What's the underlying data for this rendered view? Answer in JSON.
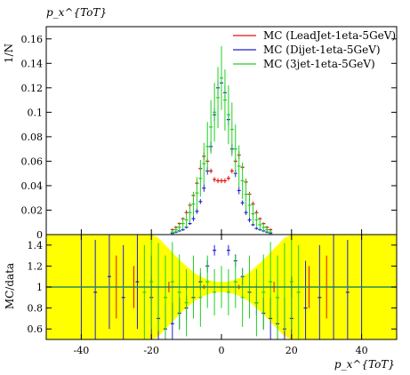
{
  "chart_data": [
    {
      "type": "scatter",
      "panel": "main",
      "title": "p_x^{ToT}",
      "xlabel": "",
      "ylabel": "1/N",
      "xlim": [
        -50,
        50
      ],
      "ylim": [
        0,
        0.17
      ],
      "xticks": [],
      "yticks": [
        0,
        0.02,
        0.04,
        0.06,
        0.08,
        0.1,
        0.12,
        0.14,
        0.16
      ],
      "ytick_labels": [
        "0",
        "0.02",
        "0.04",
        "0.06",
        "0.08",
        "0.1",
        "0.12",
        "0.14",
        "0.16"
      ],
      "legend_position": "top-right",
      "series": [
        {
          "name": "MC (LeadJet-1eta-5GeV)",
          "color": "#e01010",
          "x": [
            -14,
            -13,
            -12,
            -11,
            -10,
            -9,
            -8,
            -7,
            -6,
            -5,
            -4,
            -3,
            -2,
            -1,
            0,
            1,
            2,
            3,
            4,
            5,
            6,
            7,
            8,
            9,
            10,
            11,
            12,
            13,
            14
          ],
          "y": [
            0.004,
            0.006,
            0.009,
            0.013,
            0.018,
            0.024,
            0.032,
            0.042,
            0.054,
            0.064,
            0.06,
            0.052,
            0.045,
            0.044,
            0.044,
            0.044,
            0.046,
            0.052,
            0.06,
            0.065,
            0.055,
            0.043,
            0.033,
            0.025,
            0.018,
            0.013,
            0.009,
            0.006,
            0.004
          ],
          "yerr": [
            0.001,
            0.001,
            0.001,
            0.001,
            0.002,
            0.002,
            0.002,
            0.002,
            0.002,
            0.003,
            0.002,
            0.002,
            0.002,
            0.002,
            0.002,
            0.002,
            0.002,
            0.002,
            0.002,
            0.003,
            0.002,
            0.002,
            0.002,
            0.002,
            0.002,
            0.001,
            0.001,
            0.001,
            0.001
          ]
        },
        {
          "name": "MC (Dijet-1eta-5GeV)",
          "color": "#2020d0",
          "x": [
            -14,
            -13,
            -12,
            -11,
            -10,
            -9,
            -8,
            -7,
            -6,
            -5,
            -4,
            -3,
            -2,
            -1,
            0,
            1,
            2,
            3,
            4,
            5,
            6,
            7,
            8,
            9,
            10,
            11,
            12,
            13,
            14
          ],
          "y": [
            0.001,
            0.002,
            0.003,
            0.004,
            0.006,
            0.009,
            0.013,
            0.019,
            0.027,
            0.038,
            0.052,
            0.072,
            0.098,
            0.12,
            0.124,
            0.116,
            0.094,
            0.07,
            0.05,
            0.036,
            0.026,
            0.018,
            0.012,
            0.008,
            0.005,
            0.004,
            0.003,
            0.002,
            0.001
          ],
          "yerr": [
            0.001,
            0.001,
            0.001,
            0.001,
            0.001,
            0.001,
            0.002,
            0.002,
            0.002,
            0.003,
            0.003,
            0.004,
            0.005,
            0.006,
            0.006,
            0.006,
            0.005,
            0.004,
            0.003,
            0.003,
            0.002,
            0.002,
            0.002,
            0.001,
            0.001,
            0.001,
            0.001,
            0.001,
            0.001
          ]
        },
        {
          "name": "MC (3jet-1eta-5GeV)",
          "color": "#20d020",
          "x": [
            -14,
            -13,
            -12,
            -11,
            -10,
            -9,
            -8,
            -7,
            -6,
            -5,
            -4,
            -3,
            -2,
            -1,
            0,
            1,
            2,
            3,
            4,
            5,
            6,
            7,
            8,
            9,
            10,
            11,
            12,
            13,
            14
          ],
          "y": [
            0.002,
            0.004,
            0.006,
            0.009,
            0.012,
            0.018,
            0.025,
            0.034,
            0.046,
            0.058,
            0.072,
            0.088,
            0.1,
            0.112,
            0.128,
            0.11,
            0.098,
            0.086,
            0.07,
            0.056,
            0.044,
            0.033,
            0.024,
            0.017,
            0.012,
            0.008,
            0.006,
            0.004,
            0.002
          ],
          "yerr": [
            0.002,
            0.003,
            0.004,
            0.005,
            0.006,
            0.008,
            0.01,
            0.013,
            0.015,
            0.017,
            0.02,
            0.022,
            0.024,
            0.025,
            0.026,
            0.025,
            0.024,
            0.022,
            0.02,
            0.017,
            0.015,
            0.013,
            0.01,
            0.008,
            0.006,
            0.005,
            0.004,
            0.003,
            0.002
          ]
        }
      ]
    },
    {
      "type": "scatter",
      "panel": "ratio",
      "xlabel": "p_x^{ToT}",
      "ylabel": "MC/data",
      "xlim": [
        -50,
        50
      ],
      "ylim": [
        0.5,
        1.5
      ],
      "xticks": [
        -40,
        -20,
        0,
        20,
        40
      ],
      "xtick_labels": [
        "-40",
        "-20",
        "0",
        "20",
        "40"
      ],
      "yticks": [
        0.6,
        0.8,
        1,
        1.2,
        1.4
      ],
      "ytick_labels": [
        "0.6",
        "0.8",
        "1",
        "1.2",
        "1.4"
      ],
      "reference_line": 1,
      "band_color": "#ffff00",
      "band": {
        "x": [
          -50,
          -45,
          -40,
          -35,
          -30,
          -25,
          -20,
          -18,
          -16,
          -14,
          -12,
          -10,
          -8,
          -6,
          -4,
          -2,
          0,
          2,
          4,
          6,
          8,
          10,
          12,
          14,
          16,
          18,
          20,
          25,
          30,
          35,
          40,
          45,
          50
        ],
        "halfwidth": [
          0.5,
          0.5,
          0.5,
          0.5,
          0.5,
          0.5,
          0.5,
          0.47,
          0.4,
          0.33,
          0.26,
          0.2,
          0.14,
          0.1,
          0.07,
          0.05,
          0.05,
          0.05,
          0.07,
          0.1,
          0.14,
          0.2,
          0.26,
          0.33,
          0.4,
          0.47,
          0.5,
          0.5,
          0.5,
          0.5,
          0.5,
          0.5,
          0.5
        ]
      },
      "series": [
        {
          "name": "MC (LeadJet-1eta-5GeV)",
          "color": "#e01010",
          "x": [
            -30,
            -25,
            -20,
            -15,
            -10,
            -5,
            0,
            5,
            10,
            15,
            20,
            25,
            30
          ],
          "y": [
            1.0,
            1.0,
            1.0,
            1.0,
            1.0,
            1.0,
            1.0,
            1.0,
            1.0,
            1.0,
            1.0,
            1.0,
            1.0
          ],
          "yerr": [
            0.3,
            0.2,
            0.1,
            0.05,
            0.03,
            0.02,
            0.02,
            0.02,
            0.03,
            0.05,
            0.1,
            0.2,
            0.3
          ]
        },
        {
          "name": "MC (Dijet-1eta-5GeV)",
          "color": "#2020d0",
          "x": [
            -40,
            -36,
            -32,
            -28,
            -24,
            -20,
            -18,
            -16,
            -14,
            -12,
            -10,
            -8,
            -6,
            -4,
            -2,
            0,
            2,
            4,
            6,
            8,
            10,
            12,
            14,
            16,
            18,
            20,
            24,
            28,
            32,
            36,
            40
          ],
          "y": [
            1.0,
            0.95,
            1.1,
            0.9,
            1.05,
            0.9,
            0.7,
            0.6,
            0.65,
            0.75,
            0.8,
            0.9,
            1.05,
            1.2,
            1.35,
            1.5,
            1.35,
            1.25,
            1.1,
            0.95,
            0.85,
            0.75,
            0.7,
            0.65,
            0.6,
            0.7,
            0.8,
            0.9,
            1.0,
            0.95,
            1.0
          ],
          "yerr": [
            0.5,
            0.5,
            0.5,
            0.5,
            0.45,
            0.4,
            0.3,
            0.25,
            0.2,
            0.15,
            0.12,
            0.1,
            0.08,
            0.06,
            0.05,
            0.05,
            0.05,
            0.06,
            0.08,
            0.1,
            0.12,
            0.15,
            0.2,
            0.25,
            0.3,
            0.4,
            0.45,
            0.5,
            0.5,
            0.5,
            0.5
          ]
        },
        {
          "name": "MC (3jet-1eta-5GeV)",
          "color": "#20d020",
          "x": [
            -22,
            -20,
            -18,
            -16,
            -14,
            -12,
            -10,
            -8,
            -6,
            -4,
            -2,
            0,
            2,
            4,
            6,
            8,
            10,
            12,
            14,
            16,
            18,
            20,
            22
          ],
          "y": [
            0.95,
            1.05,
            1.0,
            0.9,
            1.05,
            0.95,
            0.85,
            1.0,
            0.9,
            1.05,
            0.95,
            1.0,
            0.95,
            1.05,
            0.9,
            1.0,
            0.85,
            0.95,
            1.05,
            0.9,
            1.0,
            1.05,
            0.95
          ],
          "yerr": [
            0.45,
            0.45,
            0.42,
            0.4,
            0.38,
            0.36,
            0.32,
            0.3,
            0.28,
            0.25,
            0.22,
            0.2,
            0.22,
            0.25,
            0.28,
            0.3,
            0.32,
            0.36,
            0.38,
            0.4,
            0.42,
            0.45,
            0.45
          ]
        }
      ]
    }
  ]
}
